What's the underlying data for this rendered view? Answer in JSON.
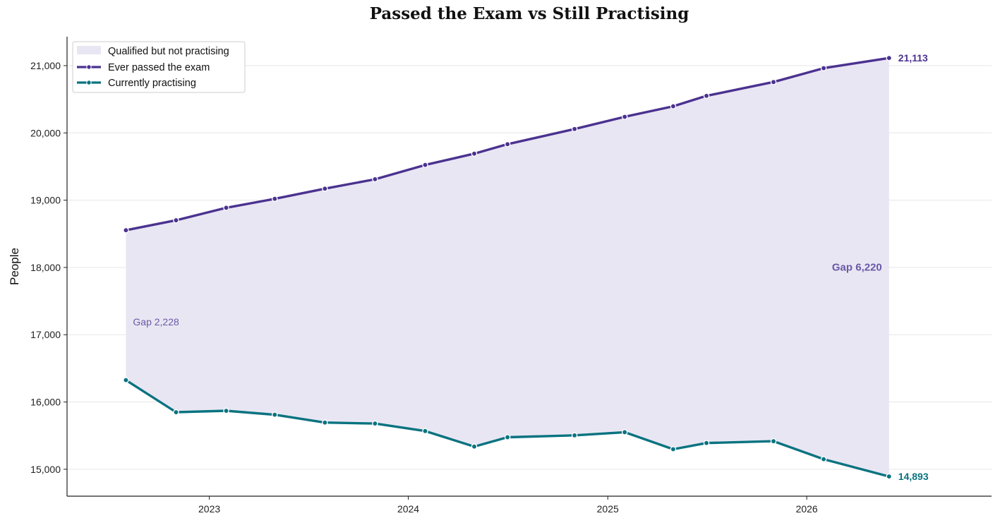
{
  "chart_data": {
    "type": "line",
    "title": "Passed the Exam vs Still Practising",
    "xlabel": "",
    "ylabel": "People",
    "ylim": [
      14600,
      21430
    ],
    "yticks": [
      15000,
      16000,
      17000,
      18000,
      19000,
      20000,
      21000
    ],
    "ytick_labels": [
      "15,000",
      "16,000",
      "17,000",
      "18,000",
      "19,000",
      "20,000",
      "21,000"
    ],
    "xlim": [
      "2022-04-15",
      "2026-12-06"
    ],
    "xticks": [
      "2023-01-01",
      "2024-01-01",
      "2025-01-01",
      "2026-01-01"
    ],
    "xtick_labels": [
      "2023",
      "2024",
      "2025",
      "2026"
    ],
    "grid": "horizontal",
    "legend_position": "top-left",
    "x": [
      "2022-08-01",
      "2022-11-01",
      "2023-02-01",
      "2023-05-01",
      "2023-08-01",
      "2023-11-01",
      "2024-02-01",
      "2024-05-01",
      "2024-07-01",
      "2024-11-01",
      "2025-02-01",
      "2025-05-01",
      "2025-07-01",
      "2025-11-01",
      "2026-02-01",
      "2026-06-01"
    ],
    "series": [
      {
        "name": "Ever passed the exam",
        "color": "#4b3290",
        "values": [
          18553,
          18701,
          18887,
          19020,
          19171,
          19311,
          19524,
          19692,
          19832,
          20058,
          20239,
          20396,
          20551,
          20756,
          20962,
          21113
        ]
      },
      {
        "name": "Currently practising",
        "color": "#0a7380",
        "values": [
          16325,
          15848,
          15869,
          15811,
          15694,
          15680,
          15568,
          15338,
          15476,
          15504,
          15551,
          15298,
          15390,
          15417,
          15150,
          14893
        ]
      }
    ],
    "fill": {
      "name": "Qualified but not practising",
      "color": "#e9e6f3"
    },
    "annotations": {
      "start_gap": "Gap 2,228",
      "end_gap": "Gap 6,220",
      "end_top": "21,113",
      "end_bottom": "14,893"
    }
  }
}
